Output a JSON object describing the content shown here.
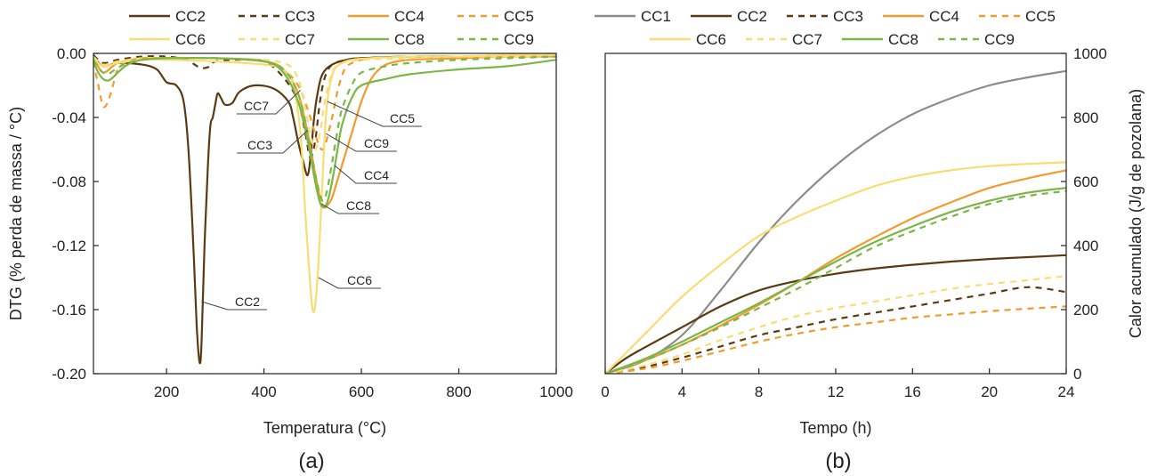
{
  "colors": {
    "CC1": "#8c8c8c",
    "CC2": "#5b3a12",
    "CC3": "#5b3a12",
    "CC4": "#f39a2c",
    "CC5": "#f39a2c",
    "CC6": "#f7dd72",
    "CC7": "#f7dd72",
    "CC8": "#7ab648",
    "CC9": "#7ab648"
  },
  "chart_data": [
    {
      "type": "line",
      "panel_label": "(a)",
      "xlabel": "Temperatura (°C)",
      "ylabel": "DTG (% perda de massa / °C)",
      "xlim": [
        50,
        1000
      ],
      "ylim": [
        -0.2,
        0.0
      ],
      "xticks": [
        200,
        400,
        600,
        800,
        1000
      ],
      "yticks": [
        0.0,
        -0.04,
        -0.08,
        -0.12,
        -0.16,
        -0.2
      ],
      "ytick_labels": [
        "0.00",
        "-0.04",
        "-0.08",
        "-0.12",
        "-0.16",
        "-0.20"
      ],
      "grid": false,
      "legend": [
        "CC2",
        "CC3",
        "CC4",
        "CC5",
        "CC6",
        "CC7",
        "CC8",
        "CC9"
      ],
      "legend_position": "top",
      "series": [
        {
          "name": "CC2",
          "dash": false,
          "x": [
            50,
            70,
            100,
            150,
            180,
            200,
            220,
            235,
            245,
            255,
            262,
            268,
            272,
            278,
            285,
            290,
            295,
            300,
            305,
            312,
            320,
            335,
            350,
            380,
            420,
            450,
            460,
            470,
            480,
            490,
            497,
            503,
            510,
            520,
            540,
            570,
            600,
            700,
            800,
            900,
            1000
          ],
          "y": [
            -0.002,
            -0.008,
            -0.006,
            -0.007,
            -0.01,
            -0.018,
            -0.02,
            -0.03,
            -0.06,
            -0.12,
            -0.17,
            -0.193,
            -0.18,
            -0.12,
            -0.07,
            -0.045,
            -0.04,
            -0.032,
            -0.025,
            -0.028,
            -0.032,
            -0.031,
            -0.024,
            -0.02,
            -0.022,
            -0.03,
            -0.04,
            -0.055,
            -0.067,
            -0.076,
            -0.06,
            -0.04,
            -0.025,
            -0.013,
            -0.007,
            -0.004,
            -0.003,
            -0.002,
            -0.002,
            -0.002,
            -0.001
          ]
        },
        {
          "name": "CC3",
          "dash": true,
          "x": [
            50,
            70,
            100,
            150,
            200,
            240,
            270,
            290,
            300,
            340,
            400,
            440,
            470,
            485,
            495,
            505,
            515,
            525,
            540,
            570,
            600,
            700,
            800,
            900,
            1000
          ],
          "y": [
            -0.001,
            -0.006,
            -0.004,
            -0.002,
            -0.002,
            -0.004,
            -0.009,
            -0.008,
            -0.005,
            -0.004,
            -0.005,
            -0.015,
            -0.03,
            -0.05,
            -0.065,
            -0.055,
            -0.03,
            -0.015,
            -0.007,
            -0.004,
            -0.003,
            -0.002,
            -0.002,
            -0.002,
            -0.001
          ]
        },
        {
          "name": "CC4",
          "dash": false,
          "x": [
            50,
            70,
            100,
            150,
            200,
            300,
            400,
            440,
            470,
            490,
            505,
            515,
            522,
            530,
            540,
            550,
            560,
            580,
            600,
            620,
            640,
            660,
            700,
            800,
            900,
            1000
          ],
          "y": [
            -0.002,
            -0.012,
            -0.006,
            -0.004,
            -0.003,
            -0.003,
            -0.005,
            -0.01,
            -0.025,
            -0.05,
            -0.075,
            -0.09,
            -0.096,
            -0.095,
            -0.09,
            -0.08,
            -0.07,
            -0.05,
            -0.03,
            -0.016,
            -0.009,
            -0.006,
            -0.004,
            -0.003,
            -0.002,
            -0.002
          ]
        },
        {
          "name": "CC5",
          "dash": true,
          "x": [
            50,
            60,
            70,
            80,
            90,
            100,
            120,
            150,
            200,
            300,
            400,
            440,
            470,
            490,
            500,
            510,
            518,
            525,
            532,
            540,
            550,
            560,
            570,
            590,
            620,
            700,
            800,
            900,
            1000
          ],
          "y": [
            -0.005,
            -0.02,
            -0.033,
            -0.03,
            -0.02,
            -0.01,
            -0.005,
            -0.003,
            -0.003,
            -0.003,
            -0.005,
            -0.01,
            -0.02,
            -0.035,
            -0.045,
            -0.055,
            -0.06,
            -0.058,
            -0.05,
            -0.04,
            -0.025,
            -0.014,
            -0.008,
            -0.005,
            -0.003,
            -0.002,
            -0.002,
            -0.001,
            -0.001
          ]
        },
        {
          "name": "CC6",
          "dash": false,
          "x": [
            50,
            70,
            100,
            150,
            200,
            300,
            400,
            440,
            460,
            475,
            485,
            495,
            500,
            505,
            512,
            520,
            527,
            535,
            545,
            560,
            580,
            620,
            700,
            800,
            900,
            1000
          ],
          "y": [
            -0.003,
            -0.008,
            -0.006,
            -0.004,
            -0.004,
            -0.005,
            -0.007,
            -0.01,
            -0.02,
            -0.05,
            -0.1,
            -0.145,
            -0.16,
            -0.158,
            -0.13,
            -0.08,
            -0.04,
            -0.02,
            -0.01,
            -0.006,
            -0.004,
            -0.003,
            -0.002,
            -0.002,
            -0.001,
            -0.001
          ]
        },
        {
          "name": "CC7",
          "dash": true,
          "x": [
            50,
            70,
            100,
            150,
            200,
            300,
            400,
            440,
            460,
            475,
            485,
            495,
            505,
            515,
            525,
            540,
            560,
            600,
            700,
            800,
            900,
            1000
          ],
          "y": [
            -0.002,
            -0.007,
            -0.005,
            -0.003,
            -0.003,
            -0.003,
            -0.004,
            -0.006,
            -0.01,
            -0.02,
            -0.035,
            -0.05,
            -0.06,
            -0.05,
            -0.03,
            -0.012,
            -0.006,
            -0.004,
            -0.003,
            -0.002,
            -0.002,
            -0.001
          ]
        },
        {
          "name": "CC8",
          "dash": false,
          "x": [
            50,
            60,
            70,
            80,
            90,
            100,
            120,
            150,
            200,
            300,
            400,
            440,
            470,
            490,
            505,
            515,
            522,
            530,
            540,
            550,
            560,
            580,
            600,
            650,
            700,
            800,
            900,
            1000
          ],
          "y": [
            -0.005,
            -0.012,
            -0.016,
            -0.017,
            -0.015,
            -0.012,
            -0.007,
            -0.004,
            -0.003,
            -0.003,
            -0.005,
            -0.012,
            -0.03,
            -0.055,
            -0.08,
            -0.093,
            -0.096,
            -0.093,
            -0.08,
            -0.062,
            -0.045,
            -0.028,
            -0.02,
            -0.016,
            -0.013,
            -0.01,
            -0.008,
            -0.004
          ]
        },
        {
          "name": "CC9",
          "dash": true,
          "x": [
            50,
            60,
            70,
            80,
            90,
            100,
            120,
            150,
            200,
            300,
            400,
            440,
            470,
            490,
            505,
            515,
            522,
            530,
            540,
            550,
            560,
            580,
            600,
            650,
            700,
            800,
            900,
            1000
          ],
          "y": [
            -0.004,
            -0.009,
            -0.012,
            -0.013,
            -0.011,
            -0.009,
            -0.006,
            -0.004,
            -0.003,
            -0.003,
            -0.005,
            -0.01,
            -0.025,
            -0.05,
            -0.075,
            -0.088,
            -0.092,
            -0.085,
            -0.068,
            -0.05,
            -0.035,
            -0.02,
            -0.012,
            -0.008,
            -0.006,
            -0.004,
            -0.003,
            -0.002
          ]
        }
      ],
      "annotations": [
        {
          "label": "CC7",
          "x": 475,
          "y": -0.023
        },
        {
          "label": "CC5",
          "x": 530,
          "y": -0.03
        },
        {
          "label": "CC9",
          "x": 527,
          "y": -0.05
        },
        {
          "label": "CC3",
          "x": 490,
          "y": -0.048
        },
        {
          "label": "CC4",
          "x": 545,
          "y": -0.07
        },
        {
          "label": "CC8",
          "x": 518,
          "y": -0.094
        },
        {
          "label": "CC6",
          "x": 512,
          "y": -0.14
        },
        {
          "label": "CC2",
          "x": 272,
          "y": -0.155
        }
      ]
    },
    {
      "type": "line",
      "panel_label": "(b)",
      "xlabel": "Tempo (h)",
      "ylabel": "Calor acumulado (J/g de pozolana)",
      "xlim": [
        0,
        24
      ],
      "ylim": [
        0,
        1000
      ],
      "xticks": [
        0,
        4,
        8,
        12,
        16,
        20,
        24
      ],
      "yticks": [
        0,
        200,
        400,
        600,
        800,
        1000
      ],
      "y_axis_side": "right",
      "grid": false,
      "legend": [
        "CC1",
        "CC2",
        "CC3",
        "CC4",
        "CC5",
        "CC6",
        "CC7",
        "CC8",
        "CC9"
      ],
      "legend_position": "top",
      "series": [
        {
          "name": "CC1",
          "dash": false,
          "x": [
            0,
            2,
            4,
            6,
            8,
            10,
            12,
            14,
            16,
            18,
            20,
            22,
            24
          ],
          "y": [
            0,
            40,
            120,
            260,
            410,
            540,
            650,
            740,
            810,
            860,
            900,
            925,
            945
          ]
        },
        {
          "name": "CC2",
          "dash": false,
          "x": [
            0,
            1,
            2,
            4,
            6,
            8,
            10,
            12,
            14,
            16,
            18,
            20,
            22,
            24
          ],
          "y": [
            0,
            45,
            80,
            145,
            210,
            260,
            290,
            312,
            328,
            340,
            350,
            358,
            364,
            370
          ]
        },
        {
          "name": "CC3",
          "dash": true,
          "x": [
            0,
            2,
            4,
            6,
            8,
            10,
            12,
            14,
            16,
            18,
            20,
            22,
            24
          ],
          "y": [
            0,
            20,
            50,
            85,
            120,
            145,
            170,
            190,
            210,
            230,
            250,
            270,
            255
          ]
        },
        {
          "name": "CC4",
          "dash": false,
          "x": [
            0,
            2,
            4,
            6,
            8,
            10,
            12,
            14,
            16,
            18,
            20,
            22,
            24
          ],
          "y": [
            0,
            40,
            90,
            150,
            215,
            285,
            360,
            425,
            485,
            535,
            580,
            610,
            635
          ]
        },
        {
          "name": "CC5",
          "dash": true,
          "x": [
            0,
            2,
            4,
            6,
            8,
            10,
            12,
            14,
            16,
            18,
            20,
            22,
            24
          ],
          "y": [
            0,
            15,
            40,
            70,
            100,
            125,
            145,
            160,
            175,
            185,
            195,
            203,
            210
          ]
        },
        {
          "name": "CC6",
          "dash": false,
          "x": [
            0,
            1,
            2,
            4,
            6,
            8,
            10,
            12,
            14,
            16,
            18,
            20,
            22,
            24
          ],
          "y": [
            0,
            60,
            120,
            240,
            340,
            430,
            490,
            540,
            585,
            615,
            635,
            648,
            655,
            660
          ]
        },
        {
          "name": "CC7",
          "dash": true,
          "x": [
            0,
            2,
            4,
            6,
            8,
            10,
            12,
            14,
            16,
            18,
            20,
            22,
            24
          ],
          "y": [
            0,
            25,
            60,
            105,
            145,
            180,
            205,
            225,
            245,
            265,
            280,
            292,
            305
          ]
        },
        {
          "name": "CC8",
          "dash": false,
          "x": [
            0,
            2,
            4,
            6,
            8,
            10,
            12,
            14,
            16,
            18,
            20,
            22,
            24
          ],
          "y": [
            0,
            45,
            100,
            160,
            220,
            285,
            350,
            410,
            460,
            505,
            540,
            565,
            580
          ]
        },
        {
          "name": "CC9",
          "dash": true,
          "x": [
            0,
            2,
            4,
            6,
            8,
            10,
            12,
            14,
            16,
            18,
            20,
            22,
            24
          ],
          "y": [
            0,
            40,
            90,
            145,
            205,
            265,
            330,
            395,
            445,
            490,
            530,
            555,
            570
          ]
        }
      ]
    }
  ]
}
